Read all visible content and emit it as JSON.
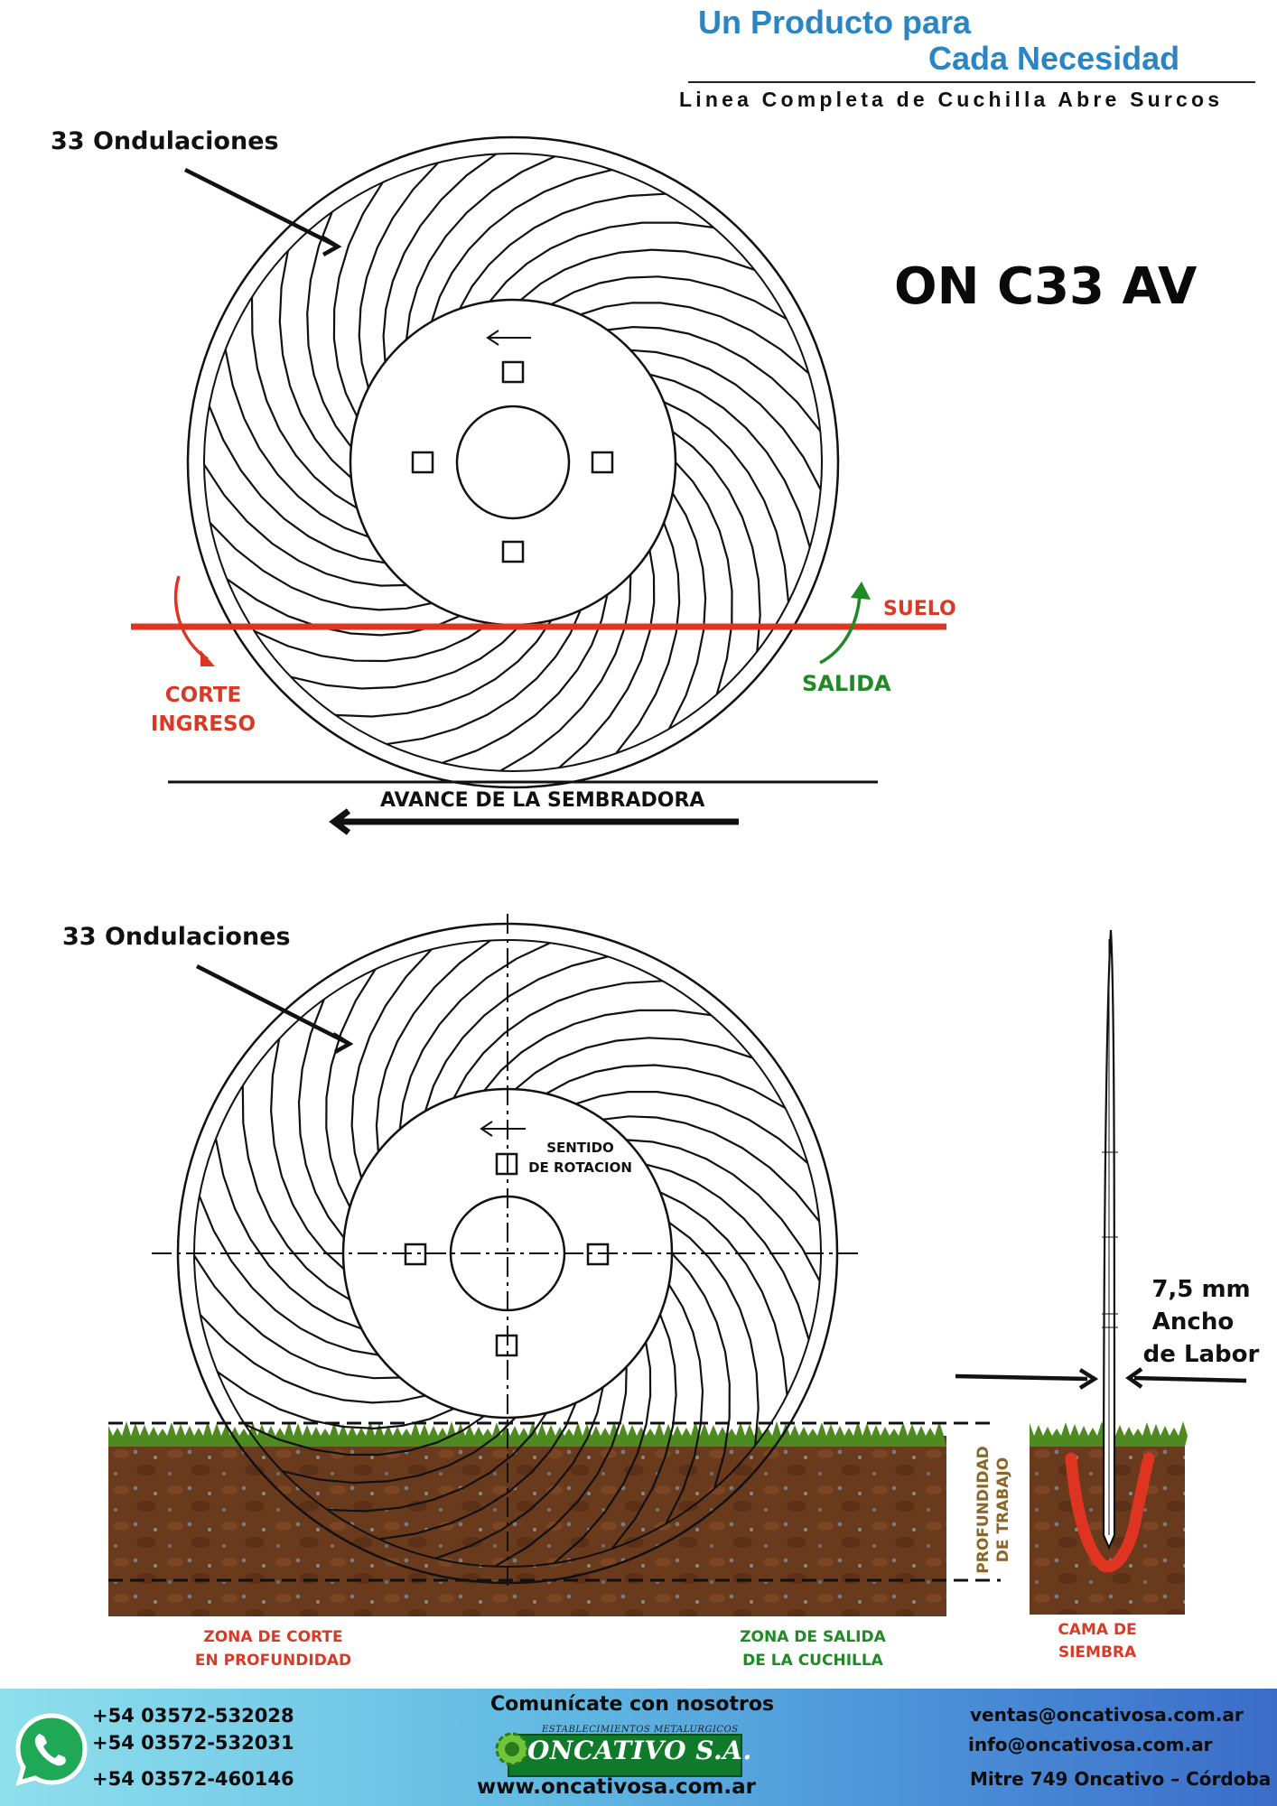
{
  "header": {
    "title_line1": "Un Producto para",
    "title_line2": "Cada Necesidad",
    "subtitle": "Linea Completa de Cuchilla Abre Surcos"
  },
  "product": {
    "model": "ON C33 AV"
  },
  "top_diagram": {
    "ondulaciones_label": "33 Ondulaciones",
    "suelo_label": "SUELO",
    "salida_label": "SALIDA",
    "corte_line1": "CORTE",
    "corte_line2": "INGRESO",
    "avance_label": "AVANCE DE LA SEMBRADORA"
  },
  "bottom_diagram": {
    "ondulaciones_label": "33 Ondulaciones",
    "sentido_line1": "SENTIDO",
    "sentido_line2": "DE ROTACION",
    "profundidad_line1": "PROFUNDIDAD",
    "profundidad_line2": "DE TRABAJO",
    "zona_corte_line1": "ZONA DE CORTE",
    "zona_corte_line2": "EN PROFUNDIDAD",
    "zona_salida_line1": "ZONA DE SALIDA",
    "zona_salida_line2": "DE LA CUCHILLA",
    "ancho_line1": "7,5 mm",
    "ancho_line2": "Ancho",
    "ancho_line3": "de Labor",
    "cama_line1": "CAMA DE",
    "cama_line2": "SIEMBRA"
  },
  "colors": {
    "accent_blue": "#2a85c4",
    "red": "#d93a25",
    "green": "#1f8a25",
    "soil": "#6e3b1c",
    "grass": "#4d8a1f",
    "brown_text": "#8a6628"
  },
  "footer": {
    "phones": [
      "+54 03572-532028",
      "+54 03572-532031",
      "+54 03572-460146"
    ],
    "contact_title": "Comunícate con nosotros",
    "logo_small": "ESTABLECIMIENTOS METALURGICOS",
    "logo_name": "ONCATIVO S.A.",
    "website": "www.oncativosa.com.ar",
    "email1": "ventas@oncativosa.com.ar",
    "email2": "info@oncativosa.com.ar",
    "address": "Mitre 749 Oncativo – Córdoba"
  }
}
